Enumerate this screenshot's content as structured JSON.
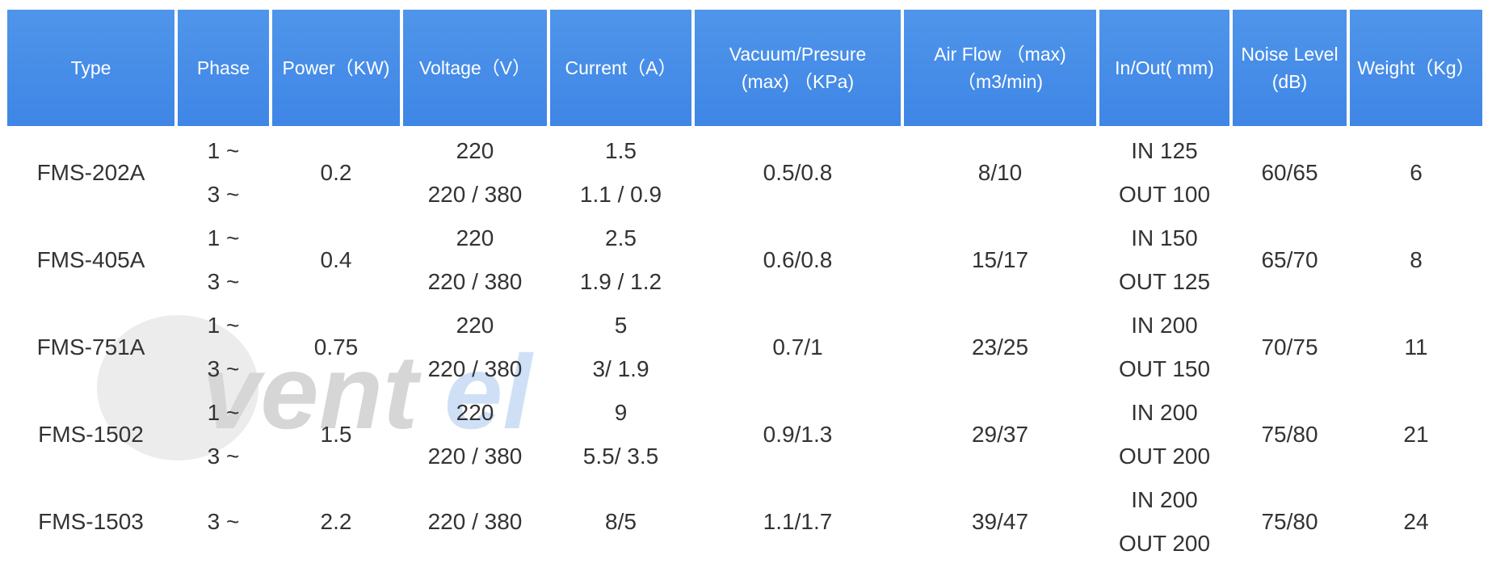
{
  "table": {
    "header": [
      "Type",
      "Phase",
      "Power（KW)",
      "Voltage（V）",
      "Current（A）",
      [
        "Vacuum/Presure",
        "(max) （KPa)"
      ],
      [
        "Air Flow （max)",
        "（m3/min)"
      ],
      "In/Out( mm)",
      [
        "Noise Level",
        "(dB)"
      ],
      "Weight（Kg）"
    ],
    "rows": [
      [
        "FMS-202A",
        [
          "1 ~",
          "3 ~"
        ],
        "0.2",
        [
          "220",
          "220 / 380"
        ],
        [
          "1.5",
          "1.1 / 0.9"
        ],
        "0.5/0.8",
        "8/10",
        [
          "IN 125",
          "OUT 100"
        ],
        "60/65",
        "6"
      ],
      [
        "FMS-405A",
        [
          "1 ~",
          "3 ~"
        ],
        "0.4",
        [
          "220",
          "220 / 380"
        ],
        [
          "2.5",
          "1.9 / 1.2"
        ],
        "0.6/0.8",
        "15/17",
        [
          "IN 150",
          "OUT 125"
        ],
        "65/70",
        "8"
      ],
      [
        "FMS-751A",
        [
          "1 ~",
          "3 ~"
        ],
        "0.75",
        [
          "220",
          "220 / 380"
        ],
        [
          "5",
          "3/ 1.9"
        ],
        "0.7/1",
        "23/25",
        [
          "IN 200",
          "OUT 150"
        ],
        "70/75",
        "11"
      ],
      [
        "FMS-1502",
        [
          "1 ~",
          "3 ~"
        ],
        "1.5",
        [
          "220",
          "220 / 380"
        ],
        [
          "9",
          "5.5/ 3.5"
        ],
        "0.9/1.3",
        "29/37",
        [
          "IN 200",
          "OUT 200"
        ],
        "75/80",
        "21"
      ],
      [
        "FMS-1503",
        "3 ~",
        "2.2",
        "220 / 380",
        "8/5",
        "1.1/1.7",
        "39/47",
        [
          "IN 200",
          "OUT 200"
        ],
        "75/80",
        "24"
      ]
    ]
  },
  "watermark": [
    "vent",
    "el"
  ]
}
